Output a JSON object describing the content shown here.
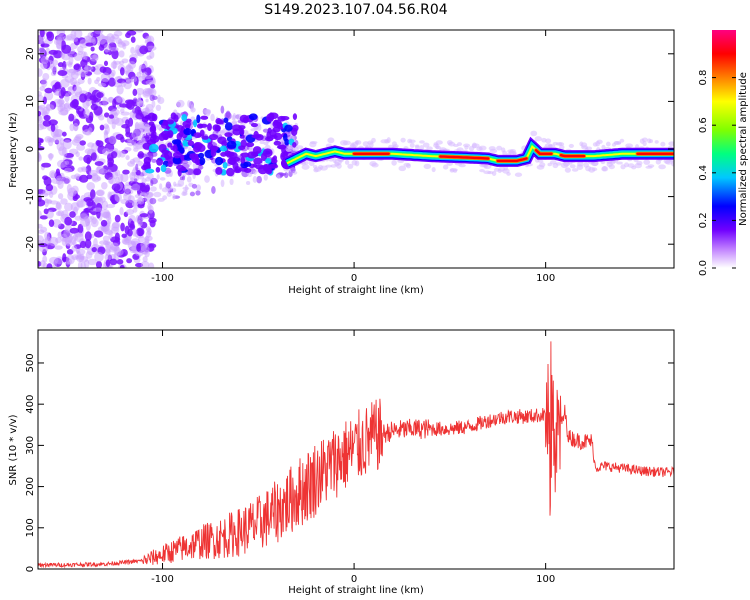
{
  "title": "S149.2023.107.04.56.R04",
  "chart_data": [
    {
      "type": "heatmap",
      "title": "S149.2023.107.04.56.R04",
      "xlabel": "Height of straight line (km)",
      "ylabel": "Frequency (Hz)",
      "xlim": [
        -165,
        167
      ],
      "ylim": [
        -25,
        25
      ],
      "xticks": [
        -100,
        0,
        100
      ],
      "yticks": [
        -20,
        -10,
        0,
        10,
        20
      ],
      "colorbar": {
        "label": "Normalized spectral amplitude",
        "range": [
          0,
          1
        ],
        "ticks": [
          "0.0",
          "0.2",
          "0.4",
          "0.6",
          "0.8"
        ],
        "colors": [
          "#ffffff",
          "#c080ff",
          "#7000ff",
          "#0000ff",
          "#00c8ff",
          "#00ff80",
          "#80ff00",
          "#ffff00",
          "#ff8000",
          "#ff0000",
          "#ff0080"
        ]
      },
      "ridge": {
        "x": [
          -35,
          -25,
          -20,
          -15,
          -10,
          -5,
          0,
          10,
          20,
          40,
          60,
          70,
          75,
          80,
          85,
          90,
          93,
          97,
          100,
          105,
          110,
          115,
          125,
          140,
          160,
          167
        ],
        "y": [
          -3,
          -1,
          -1.5,
          -1,
          -0.5,
          -1,
          -1,
          -1,
          -1,
          -1.5,
          -1.8,
          -2,
          -2.5,
          -2.5,
          -2.5,
          -2,
          0.5,
          -1,
          -1,
          -1,
          -1.5,
          -1.5,
          -1.5,
          -1,
          -1,
          -1
        ]
      },
      "strong_segments": [
        [
          0,
          18
        ],
        [
          45,
          70
        ],
        [
          75,
          90
        ],
        [
          95,
          103
        ],
        [
          108,
          120
        ],
        [
          148,
          167
        ]
      ]
    },
    {
      "type": "line",
      "xlabel": "Height of straight line (km)",
      "ylabel": "SNR (10 * v/v)",
      "xlim": [
        -165,
        167
      ],
      "ylim": [
        0,
        580
      ],
      "xticks": [
        -100,
        0,
        100
      ],
      "yticks": [
        0,
        100,
        200,
        300,
        400,
        500
      ],
      "color": "#ee3333",
      "x": [
        -165,
        -150,
        -130,
        -110,
        -100,
        -90,
        -80,
        -70,
        -60,
        -50,
        -40,
        -30,
        -20,
        -10,
        0,
        10,
        20,
        30,
        40,
        50,
        60,
        70,
        80,
        90,
        100,
        105,
        110,
        112,
        118,
        124,
        126,
        130,
        140,
        150,
        160,
        167
      ],
      "y": [
        10,
        10,
        12,
        20,
        35,
        50,
        65,
        75,
        90,
        110,
        140,
        180,
        220,
        260,
        290,
        320,
        335,
        340,
        340,
        340,
        345,
        360,
        370,
        370,
        375,
        300,
        380,
        320,
        310,
        310,
        245,
        250,
        245,
        238,
        235,
        235
      ]
    }
  ]
}
